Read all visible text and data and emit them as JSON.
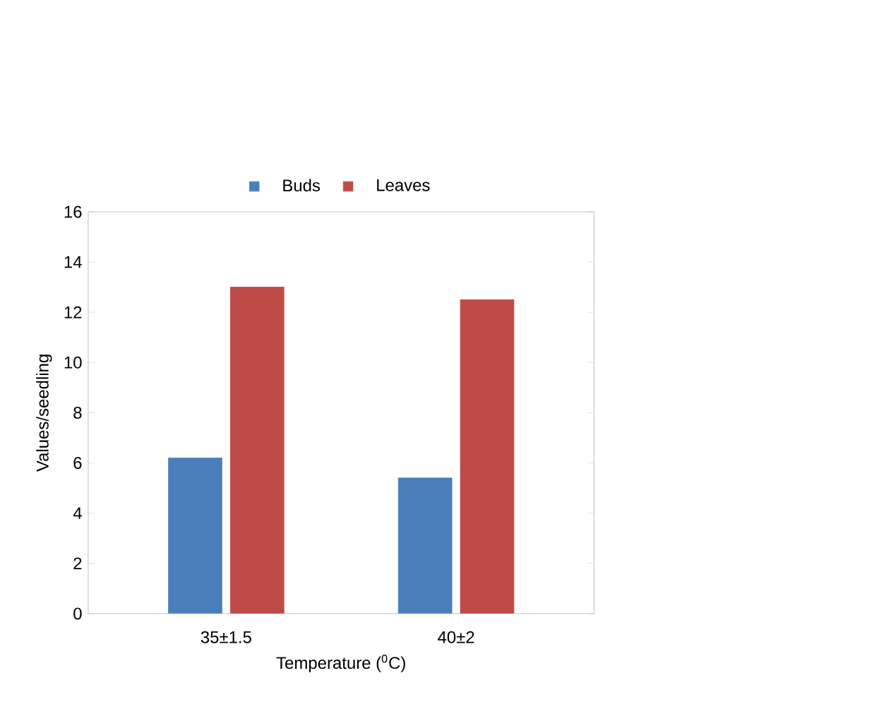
{
  "chart_data": {
    "type": "bar",
    "xlabel": "Temperature ($^{0}$C)",
    "ylabel": "Values/seedling",
    "categories": [
      "35±1.5",
      "40±2"
    ],
    "series": [
      {
        "name": "Buds",
        "color": "#4a7ebb",
        "values": [
          6.2,
          5.4
        ]
      },
      {
        "name": "Leaves",
        "color": "#be4b48",
        "values": [
          13,
          12.5
        ]
      }
    ],
    "ylim": [
      0,
      16
    ],
    "yticks": [
      0,
      2,
      4,
      6,
      8,
      10,
      12,
      14,
      16
    ],
    "grid": false,
    "legend": "top"
  }
}
